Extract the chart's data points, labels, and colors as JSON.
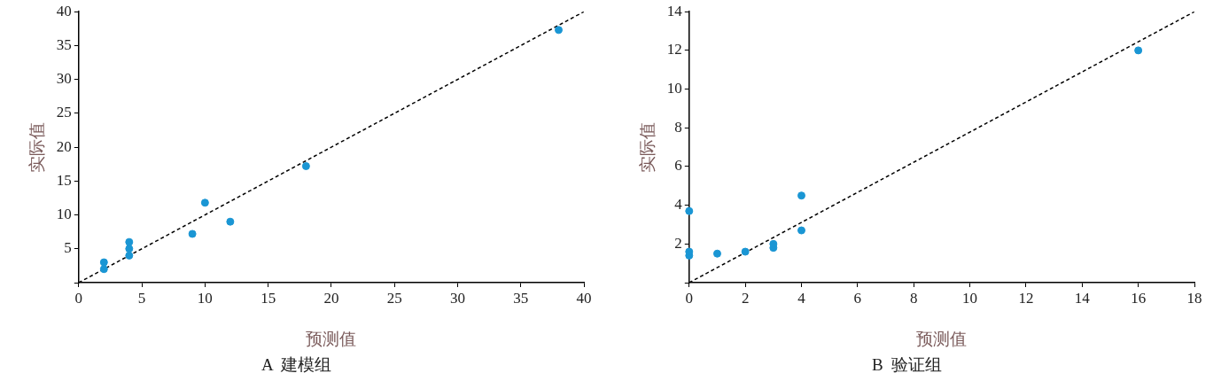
{
  "chart_data": [
    {
      "type": "scatter",
      "title": "A  建模组",
      "xlabel": "预测值",
      "ylabel": "实际值",
      "marker": "circle",
      "grid": false,
      "xlim": [
        0,
        40
      ],
      "ylim": [
        0,
        40
      ],
      "xticks": [
        0,
        5,
        10,
        15,
        20,
        25,
        30,
        35,
        40
      ],
      "yticks": [
        {
          "value": 0,
          "label": null
        },
        5,
        10,
        15,
        20,
        25,
        30,
        35,
        40
      ],
      "series": [
        {
          "type": "scatter",
          "color": "#1a96d4",
          "x": [
            2,
            2,
            4,
            4,
            4,
            9,
            10,
            12,
            18,
            38
          ],
          "values": [
            2,
            3,
            4,
            5,
            6,
            7.2,
            11.8,
            9,
            17.2,
            37.3
          ]
        },
        {
          "type": "line",
          "color": "#000000",
          "line_style": "dashed",
          "marker": "none",
          "x": [
            0,
            40
          ],
          "values": [
            0,
            40
          ]
        }
      ]
    },
    {
      "type": "scatter",
      "title": "B  验证组",
      "xlabel": "预测值",
      "ylabel": "实际值",
      "marker": "circle",
      "grid": false,
      "xlim": [
        0,
        18
      ],
      "ylim": [
        0,
        14
      ],
      "xticks": [
        0,
        2,
        4,
        6,
        8,
        10,
        12,
        14,
        16,
        18
      ],
      "yticks": [
        {
          "value": 0,
          "label": null
        },
        2,
        4,
        6,
        8,
        10,
        12,
        14
      ],
      "series": [
        {
          "type": "scatter",
          "color": "#1a96d4",
          "x": [
            0,
            0,
            0,
            1,
            2,
            3,
            3,
            4,
            4,
            16
          ],
          "values": [
            1.4,
            1.6,
            3.7,
            1.5,
            1.6,
            1.8,
            2.0,
            2.7,
            4.5,
            12
          ]
        },
        {
          "type": "line",
          "color": "#000000",
          "line_style": "dashed",
          "marker": "none",
          "x": [
            0,
            18
          ],
          "values": [
            0,
            14
          ]
        }
      ]
    }
  ]
}
